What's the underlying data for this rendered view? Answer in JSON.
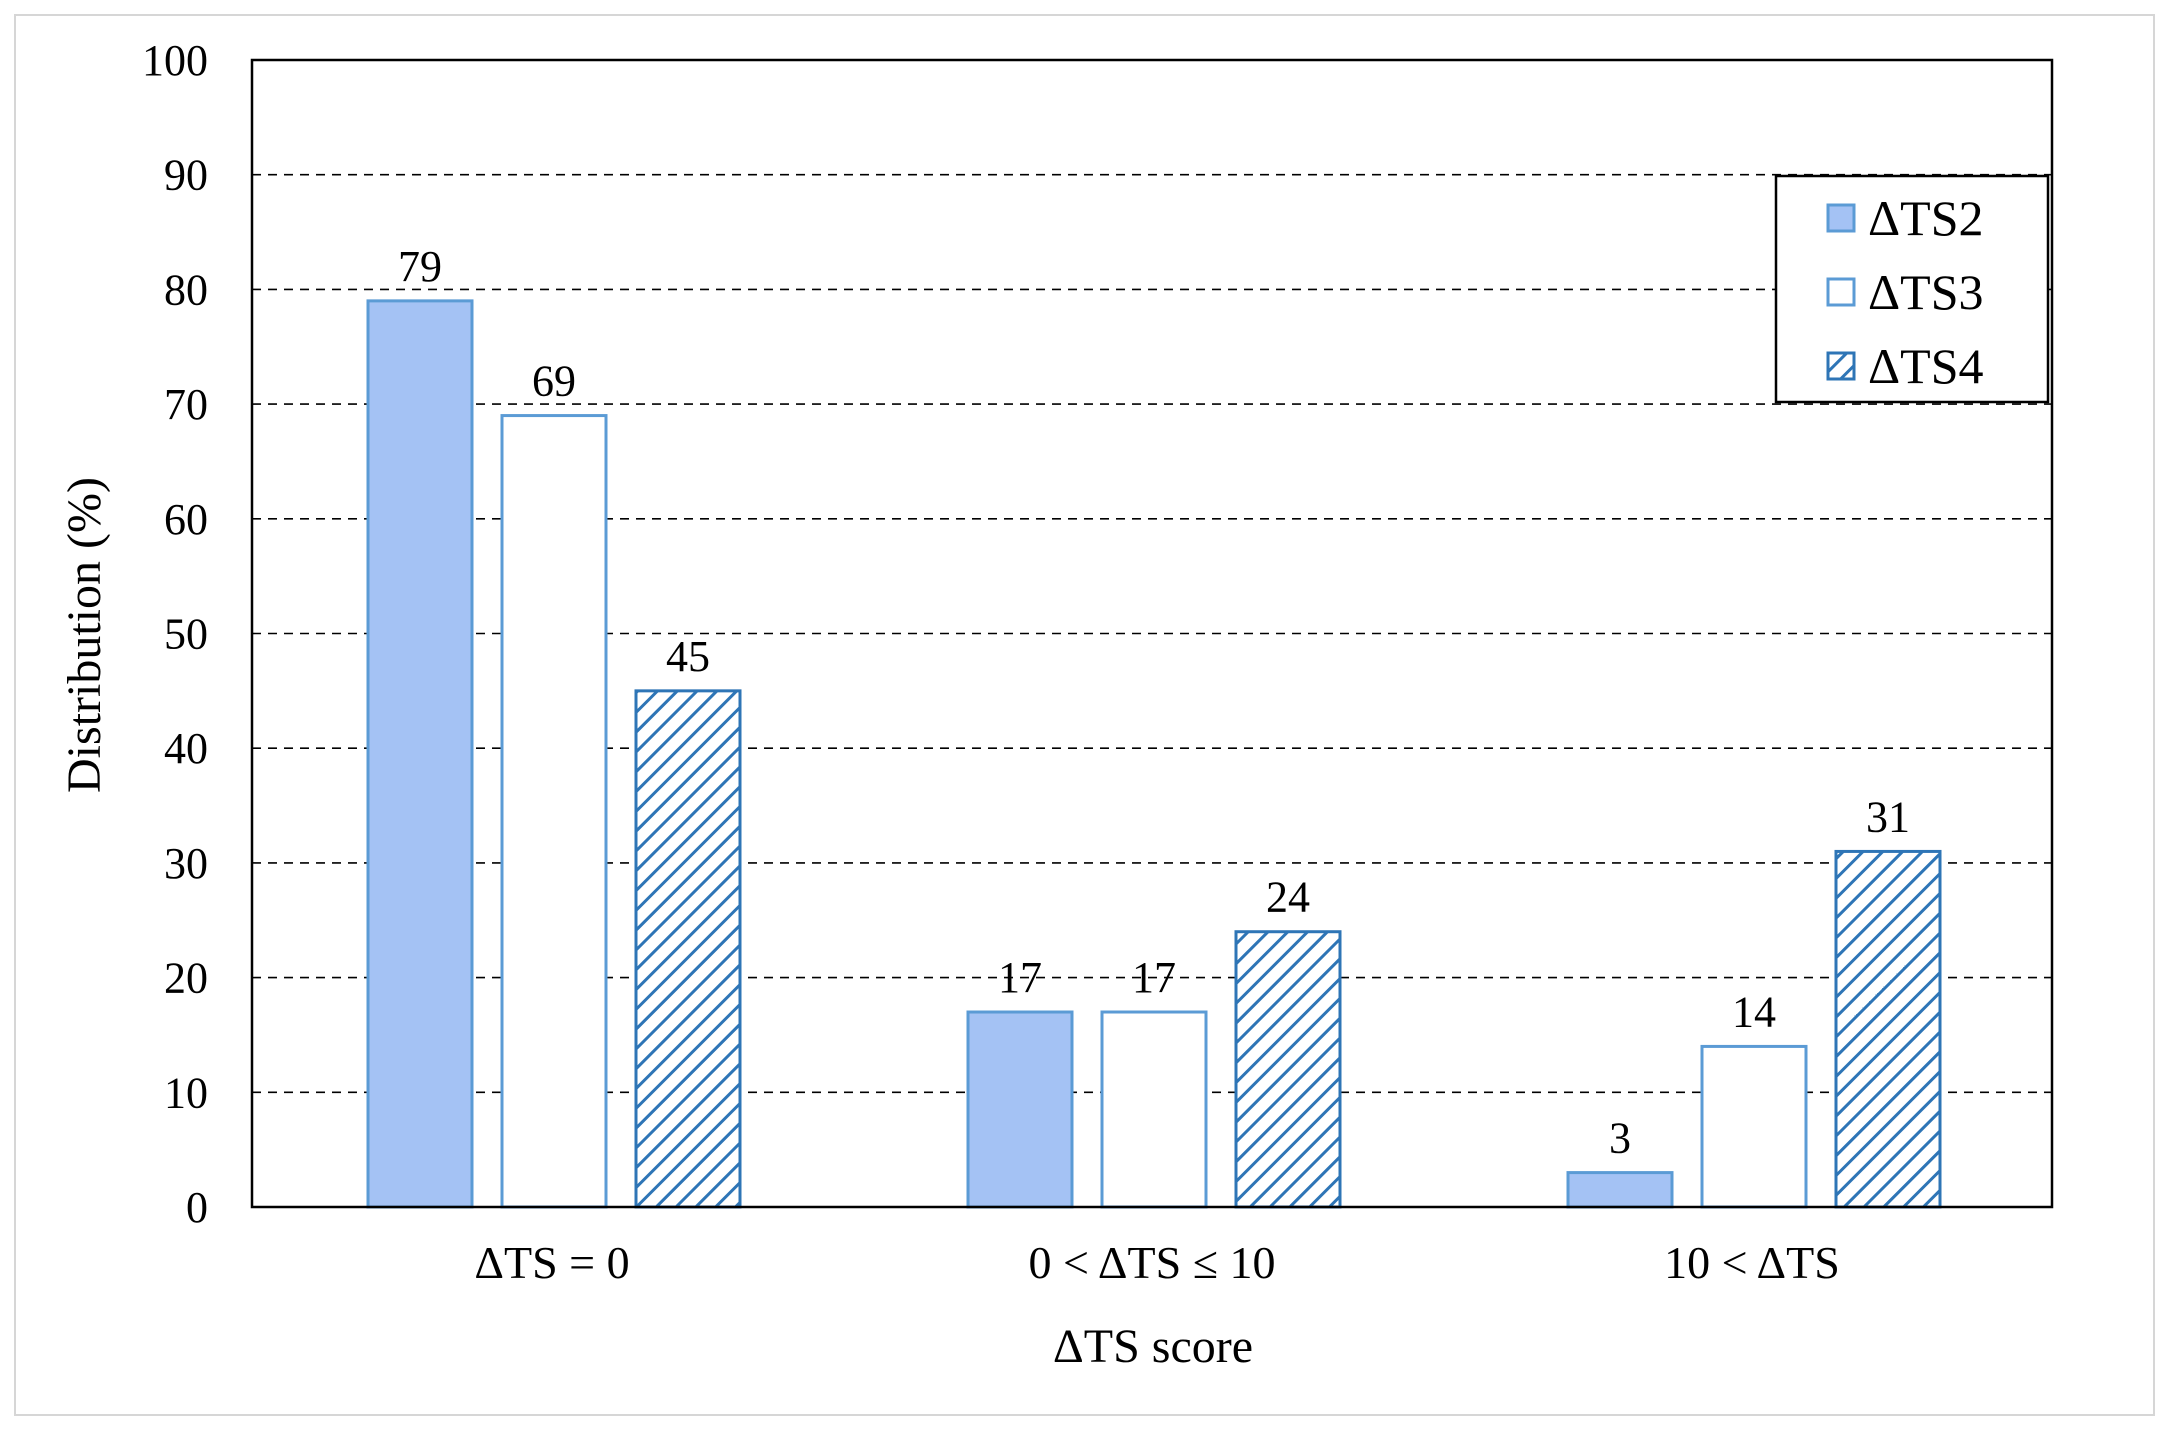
{
  "chart_data": {
    "type": "bar",
    "title": "",
    "xlabel": "ΔTS score",
    "ylabel": "Distribution (%)",
    "ylim": [
      0,
      100
    ],
    "yticks": [
      0,
      10,
      20,
      30,
      40,
      50,
      60,
      70,
      80,
      90,
      100
    ],
    "grid": "horizontal dashed",
    "legend_position": "top-right",
    "categories": [
      "ΔTS = 0",
      "0 < ΔTS ≤ 10",
      "10 < ΔTS"
    ],
    "series": [
      {
        "name": "ΔTS2",
        "values": [
          79,
          17,
          3
        ],
        "fill": "#a4c2f4",
        "stroke": "#5b9bd5",
        "pattern": "solid"
      },
      {
        "name": "ΔTS3",
        "values": [
          69,
          17,
          14
        ],
        "fill": "#ffffff",
        "stroke": "#5b9bd5",
        "pattern": "none"
      },
      {
        "name": "ΔTS4",
        "values": [
          45,
          24,
          31
        ],
        "fill": "#ffffff",
        "stroke": "#2e75b6",
        "pattern": "diagonal-hatch"
      }
    ]
  }
}
